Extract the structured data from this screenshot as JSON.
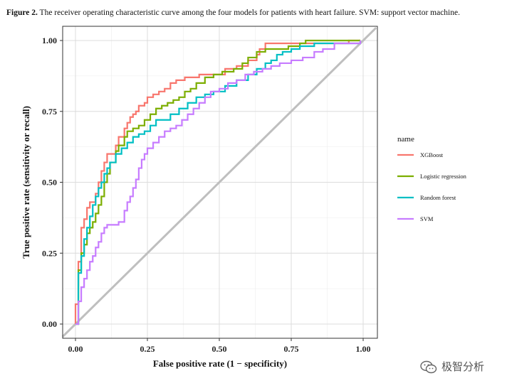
{
  "caption": {
    "label": "Figure 2.",
    "text": "The receiver operating characteristic curve among the four models for patients with heart failure. SVM: support vector machine."
  },
  "watermark": {
    "text": "极智分析",
    "icon": "wechat-icon"
  },
  "chart_data": {
    "type": "line",
    "xlabel": "False positive rate (1 − specificity)",
    "ylabel": "True positive rate (sensitivity or recall)",
    "xlim": [
      0,
      1
    ],
    "ylim": [
      0,
      1
    ],
    "xticks": [
      "0.00",
      "0.25",
      "0.50",
      "0.75",
      "1.00"
    ],
    "yticks": [
      "0.00",
      "0.25",
      "0.50",
      "0.75",
      "1.00"
    ],
    "grid": true,
    "legend": {
      "title": "name",
      "position": "right"
    },
    "reference_line": {
      "from": [
        0,
        0
      ],
      "to": [
        1,
        1
      ],
      "color": "#bfbfbf"
    },
    "series": [
      {
        "name": "XGBoost",
        "color": "#f8766d",
        "x": [
          0,
          0,
          0.01,
          0.01,
          0.02,
          0.02,
          0.03,
          0.04,
          0.04,
          0.05,
          0.07,
          0.07,
          0.08,
          0.09,
          0.1,
          0.11,
          0.12,
          0.14,
          0.15,
          0.17,
          0.18,
          0.19,
          0.2,
          0.21,
          0.22,
          0.24,
          0.25,
          0.27,
          0.29,
          0.31,
          0.33,
          0.35,
          0.38,
          0.4,
          0.43,
          0.46,
          0.49,
          0.52,
          0.56,
          0.6,
          0.63,
          0.64,
          0.66,
          0.68,
          0.72,
          0.76,
          0.8,
          0.85,
          0.9,
          0.95,
          0.99
        ],
        "y": [
          0,
          0.07,
          0.14,
          0.22,
          0.29,
          0.34,
          0.37,
          0.4,
          0.41,
          0.43,
          0.43,
          0.46,
          0.5,
          0.54,
          0.57,
          0.6,
          0.6,
          0.63,
          0.66,
          0.69,
          0.71,
          0.73,
          0.74,
          0.75,
          0.77,
          0.78,
          0.8,
          0.81,
          0.82,
          0.83,
          0.85,
          0.86,
          0.87,
          0.87,
          0.88,
          0.88,
          0.88,
          0.9,
          0.91,
          0.93,
          0.95,
          0.97,
          0.99,
          0.99,
          0.99,
          0.99,
          0.99,
          0.99,
          0.99,
          1.0,
          1.0
        ]
      },
      {
        "name": "Logistic regression",
        "color": "#7cae00",
        "x": [
          0,
          0.01,
          0.01,
          0.02,
          0.03,
          0.04,
          0.05,
          0.06,
          0.07,
          0.08,
          0.09,
          0.1,
          0.11,
          0.12,
          0.14,
          0.15,
          0.17,
          0.18,
          0.2,
          0.22,
          0.24,
          0.26,
          0.28,
          0.3,
          0.32,
          0.34,
          0.36,
          0.38,
          0.4,
          0.42,
          0.45,
          0.48,
          0.51,
          0.55,
          0.58,
          0.6,
          0.63,
          0.66,
          0.7,
          0.74,
          0.78,
          0.8,
          0.82,
          0.85,
          0.9,
          0.95,
          0.99
        ],
        "y": [
          0,
          0.1,
          0.19,
          0.25,
          0.28,
          0.32,
          0.34,
          0.36,
          0.39,
          0.42,
          0.45,
          0.5,
          0.53,
          0.57,
          0.61,
          0.63,
          0.66,
          0.68,
          0.69,
          0.7,
          0.72,
          0.74,
          0.76,
          0.77,
          0.78,
          0.79,
          0.8,
          0.82,
          0.83,
          0.85,
          0.87,
          0.88,
          0.89,
          0.9,
          0.92,
          0.94,
          0.96,
          0.97,
          0.97,
          0.98,
          0.99,
          1.0,
          1.0,
          1.0,
          1.0,
          1.0,
          1.0
        ]
      },
      {
        "name": "Random forest",
        "color": "#00bfc4",
        "x": [
          0,
          0.01,
          0.01,
          0.02,
          0.03,
          0.04,
          0.05,
          0.06,
          0.07,
          0.08,
          0.09,
          0.1,
          0.11,
          0.12,
          0.14,
          0.16,
          0.18,
          0.2,
          0.22,
          0.24,
          0.26,
          0.28,
          0.3,
          0.33,
          0.36,
          0.39,
          0.42,
          0.45,
          0.48,
          0.52,
          0.56,
          0.6,
          0.63,
          0.66,
          0.68,
          0.7,
          0.72,
          0.75,
          0.78,
          0.8,
          0.83,
          0.86,
          0.9,
          0.95,
          0.99
        ],
        "y": [
          0,
          0.08,
          0.18,
          0.24,
          0.3,
          0.34,
          0.38,
          0.42,
          0.45,
          0.48,
          0.5,
          0.53,
          0.55,
          0.57,
          0.6,
          0.62,
          0.64,
          0.66,
          0.67,
          0.68,
          0.7,
          0.72,
          0.72,
          0.74,
          0.76,
          0.78,
          0.8,
          0.81,
          0.82,
          0.84,
          0.86,
          0.88,
          0.9,
          0.92,
          0.93,
          0.95,
          0.96,
          0.97,
          0.98,
          0.98,
          0.99,
          0.99,
          0.99,
          0.99,
          1.0
        ]
      },
      {
        "name": "SVM",
        "color": "#c77cff",
        "x": [
          0,
          0.01,
          0.02,
          0.03,
          0.04,
          0.05,
          0.06,
          0.07,
          0.08,
          0.09,
          0.1,
          0.11,
          0.13,
          0.15,
          0.17,
          0.18,
          0.19,
          0.2,
          0.21,
          0.22,
          0.23,
          0.24,
          0.25,
          0.27,
          0.29,
          0.31,
          0.33,
          0.35,
          0.37,
          0.39,
          0.41,
          0.43,
          0.45,
          0.47,
          0.5,
          0.53,
          0.56,
          0.59,
          0.62,
          0.65,
          0.68,
          0.71,
          0.75,
          0.79,
          0.83,
          0.86,
          0.9,
          0.95,
          0.99
        ],
        "y": [
          0,
          0.08,
          0.13,
          0.16,
          0.19,
          0.22,
          0.24,
          0.27,
          0.29,
          0.32,
          0.34,
          0.35,
          0.35,
          0.36,
          0.4,
          0.43,
          0.45,
          0.48,
          0.51,
          0.55,
          0.58,
          0.6,
          0.62,
          0.64,
          0.66,
          0.68,
          0.69,
          0.7,
          0.72,
          0.74,
          0.76,
          0.78,
          0.8,
          0.82,
          0.83,
          0.85,
          0.86,
          0.88,
          0.89,
          0.9,
          0.91,
          0.92,
          0.93,
          0.94,
          0.96,
          0.97,
          0.99,
          0.99,
          1.0
        ]
      }
    ]
  }
}
